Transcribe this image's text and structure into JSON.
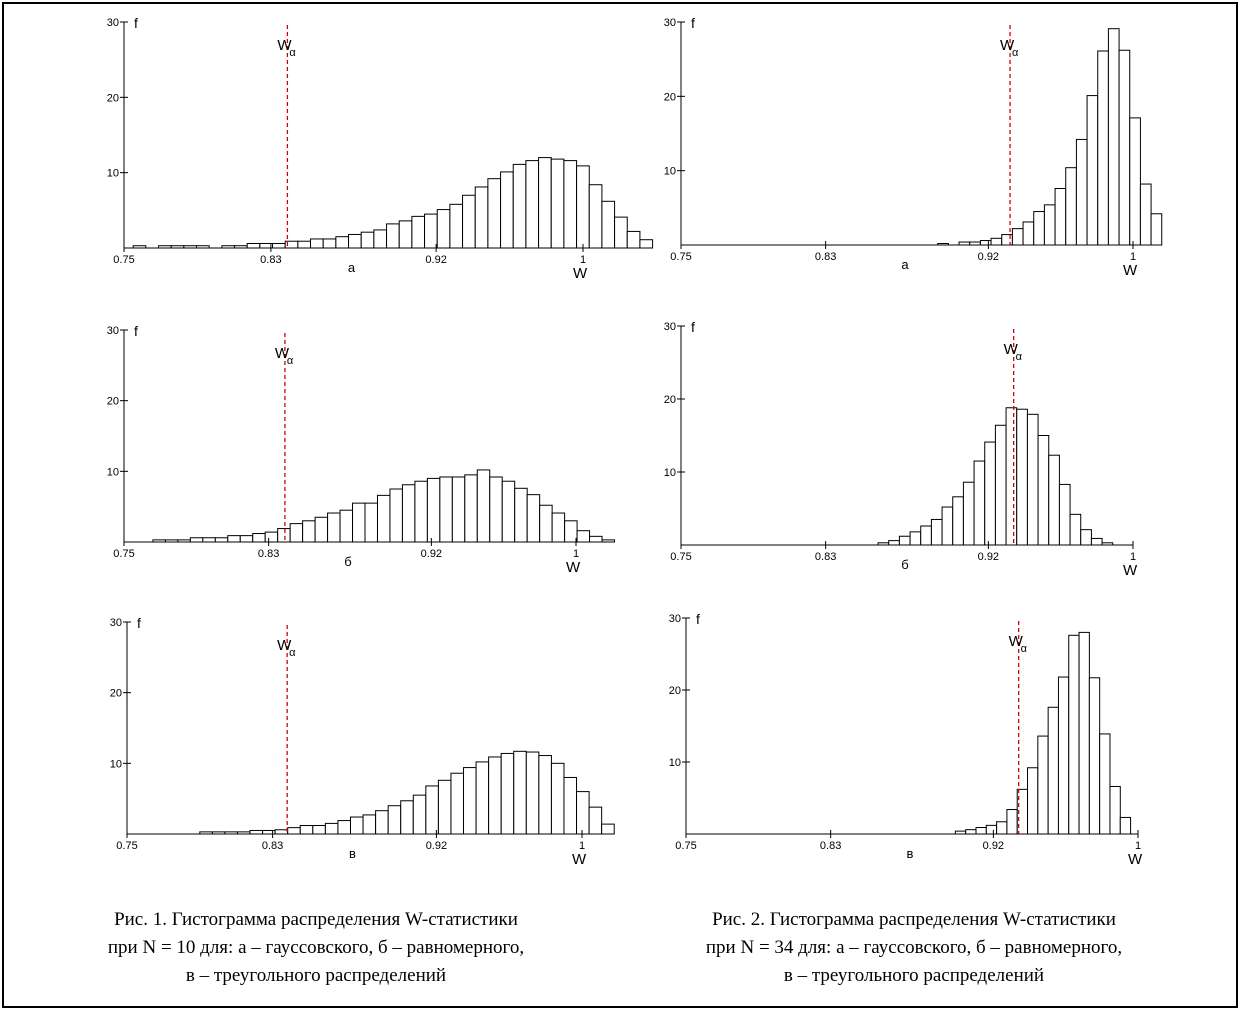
{
  "figure_1": {
    "caption_lines": [
      "Рис. 1. Гистограмма распределения W-статистики",
      "при N = 10 для: а – гауссовского, б – равномерного,",
      "в – треугольного распределений"
    ]
  },
  "figure_2": {
    "caption_lines": [
      "Рис. 2. Гистограмма распределения W-статистики",
      "при N = 34 для: а – гауссовского, б – равномерного,",
      "в – треугольного распределений"
    ]
  },
  "colors": {
    "bars": "#000000",
    "critical_line": "#d40000",
    "background": "#ffffff"
  },
  "chart_data": [
    {
      "type": "bar",
      "figure": "1",
      "panel_label": "а",
      "xlabel": "W",
      "ylabel": "f",
      "xlim": [
        0.75,
        1.0
      ],
      "ylim": [
        0,
        30
      ],
      "x_tick_labels": [
        "0.75",
        "0.83",
        "0.92",
        "1"
      ],
      "y_tick_labels": [
        "10",
        "20",
        "30"
      ],
      "critical_value_label": "W",
      "critical_value_subscript": "α",
      "critical_value": 0.839,
      "bins": {
        "start": 0.755,
        "width": 0.0069
      },
      "values": [
        0.3,
        0,
        0.3,
        0.3,
        0.3,
        0.3,
        0,
        0.3,
        0.3,
        0.6,
        0.6,
        0.6,
        0.9,
        0.9,
        1.2,
        1.2,
        1.5,
        1.8,
        2.1,
        2.4,
        3.2,
        3.6,
        4.2,
        4.5,
        5.1,
        5.8,
        7.0,
        8.1,
        9.2,
        10.1,
        11.1,
        11.6,
        12.0,
        11.8,
        11.6,
        10.9,
        8.4,
        6.2,
        4.1,
        2.2,
        1.1
      ]
    },
    {
      "type": "bar",
      "figure": "1",
      "panel_label": "б",
      "xlabel": "W",
      "ylabel": "f",
      "xlim": [
        0.75,
        1.0
      ],
      "ylim": [
        0,
        30
      ],
      "x_tick_labels": [
        "0.75",
        "0.83",
        "0.92",
        "1"
      ],
      "y_tick_labels": [
        "10",
        "20",
        "30"
      ],
      "critical_value_label": "W",
      "critical_value_subscript": "α",
      "critical_value": 0.839,
      "bins": {
        "start": 0.766,
        "width": 0.0069
      },
      "values": [
        0.3,
        0.3,
        0.3,
        0.6,
        0.6,
        0.6,
        0.9,
        0.9,
        1.2,
        1.4,
        1.9,
        2.6,
        3.0,
        3.5,
        4.1,
        4.5,
        5.5,
        5.5,
        6.6,
        7.5,
        8.1,
        8.6,
        9.0,
        9.2,
        9.2,
        9.5,
        10.2,
        9.2,
        8.6,
        7.6,
        6.7,
        5.2,
        4.1,
        3.0,
        1.6,
        0.8,
        0.3
      ]
    },
    {
      "type": "bar",
      "figure": "1",
      "panel_label": "в",
      "xlabel": "W",
      "ylabel": "f",
      "xlim": [
        0.75,
        1.0
      ],
      "ylim": [
        0,
        30
      ],
      "x_tick_labels": [
        "0.75",
        "0.83",
        "0.92",
        "1"
      ],
      "y_tick_labels": [
        "10",
        "20",
        "30"
      ],
      "critical_value_label": "W",
      "critical_value_subscript": "α",
      "critical_value": 0.838,
      "bins": {
        "start": 0.79,
        "width": 0.0069
      },
      "values": [
        0.3,
        0.3,
        0.3,
        0.3,
        0.5,
        0.5,
        0.6,
        0.9,
        1.2,
        1.2,
        1.5,
        1.9,
        2.4,
        2.7,
        3.3,
        4.0,
        4.7,
        5.5,
        6.8,
        7.6,
        8.6,
        9.4,
        10.2,
        10.9,
        11.4,
        11.7,
        11.6,
        11.1,
        10.0,
        8.0,
        6.0,
        3.8,
        1.4
      ]
    },
    {
      "type": "bar",
      "figure": "2",
      "panel_label": "а",
      "xlabel": "W",
      "ylabel": "f",
      "xlim": [
        0.75,
        1.0
      ],
      "ylim": [
        0,
        30
      ],
      "x_tick_labels": [
        "0.75",
        "0.83",
        "0.92",
        "1"
      ],
      "y_tick_labels": [
        "10",
        "20",
        "30"
      ],
      "critical_value_label": "W",
      "critical_value_subscript": "α",
      "critical_value": 0.932,
      "bins": {
        "start": 0.892,
        "width": 0.0059
      },
      "values": [
        0.2,
        0,
        0.4,
        0.4,
        0.6,
        0.9,
        1.4,
        2.2,
        3.1,
        4.5,
        5.4,
        7.6,
        10.4,
        14.2,
        20.1,
        26.1,
        29.1,
        26.2,
        17.1,
        8.2,
        4.2
      ]
    },
    {
      "type": "bar",
      "figure": "2",
      "panel_label": "б",
      "xlabel": "W",
      "ylabel": "f",
      "xlim": [
        0.75,
        1.0
      ],
      "ylim": [
        0,
        30
      ],
      "x_tick_labels": [
        "0.75",
        "0.83",
        "0.92",
        "1"
      ],
      "y_tick_labels": [
        "10",
        "20",
        "30"
      ],
      "critical_value_label": "W",
      "critical_value_subscript": "α",
      "critical_value": 0.934,
      "bins": {
        "start": 0.859,
        "width": 0.0059
      },
      "values": [
        0.3,
        0.6,
        1.2,
        1.8,
        2.6,
        3.5,
        5.2,
        6.6,
        8.6,
        11.5,
        14.1,
        16.4,
        18.8,
        18.6,
        17.9,
        15.0,
        12.3,
        8.3,
        4.2,
        2.1,
        0.9,
        0.3
      ]
    },
    {
      "type": "bar",
      "figure": "2",
      "panel_label": "в",
      "xlabel": "W",
      "ylabel": "f",
      "xlim": [
        0.75,
        1.0
      ],
      "ylim": [
        0,
        30
      ],
      "x_tick_labels": [
        "0.75",
        "0.83",
        "0.92",
        "1"
      ],
      "y_tick_labels": [
        "10",
        "20",
        "30"
      ],
      "critical_value_label": "W",
      "critical_value_subscript": "α",
      "critical_value": 0.934,
      "bins": {
        "start": 0.899,
        "width": 0.0057
      },
      "values": [
        0.4,
        0.6,
        0.9,
        1.2,
        1.7,
        3.4,
        6.2,
        9.2,
        13.6,
        17.6,
        21.8,
        27.6,
        28.0,
        21.7,
        13.9,
        6.6,
        2.3
      ]
    }
  ]
}
